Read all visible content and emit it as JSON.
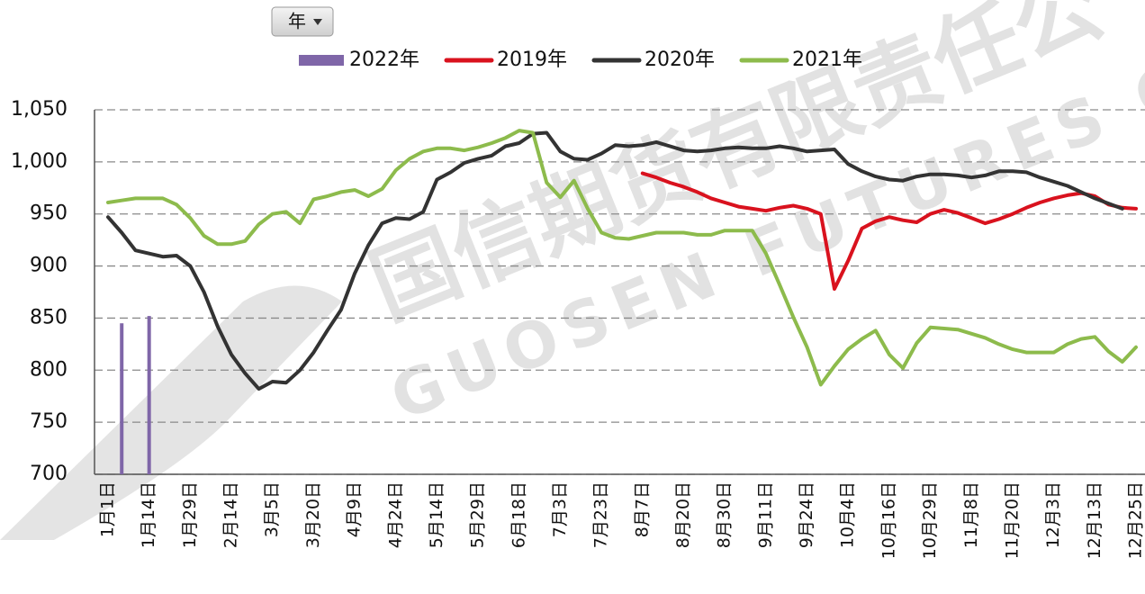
{
  "filter_label": "年",
  "watermark": [
    "国信期货有限责任公",
    "GUOSEN FUTURES CO"
  ],
  "chart_data": {
    "type": "line",
    "categories": [
      "1月1日",
      null,
      null,
      "1月14日",
      null,
      null,
      "1月29日",
      null,
      null,
      "2月14日",
      null,
      null,
      "3月5日",
      null,
      null,
      "3月20日",
      null,
      null,
      "4月9日",
      null,
      null,
      "4月24日",
      null,
      null,
      "5月14日",
      null,
      null,
      "5月29日",
      null,
      null,
      "6月18日",
      null,
      null,
      "7月3日",
      null,
      null,
      "7月23日",
      null,
      null,
      "8月7日",
      null,
      null,
      "8月20日",
      null,
      null,
      "8月30日",
      null,
      null,
      "9月11日",
      null,
      null,
      "9月24日",
      null,
      null,
      "10月4日",
      null,
      null,
      "10月16日",
      null,
      null,
      "10月29日",
      null,
      null,
      "11月8日",
      null,
      null,
      "11月20日",
      null,
      null,
      "12月3日",
      null,
      null,
      "12月13日",
      null,
      null,
      "12月25日"
    ],
    "series": [
      {
        "name": "2022年",
        "mark": "bar",
        "color": "#7f66a8",
        "values": [
          null,
          845,
          null,
          852,
          null,
          null,
          null,
          null,
          null,
          null,
          null,
          null,
          null,
          null,
          null,
          null,
          null,
          null,
          null,
          null,
          null,
          null,
          null,
          null,
          null,
          null,
          null,
          null,
          null,
          null,
          null,
          null,
          null,
          null,
          null,
          null,
          null,
          null,
          null,
          null,
          null,
          null,
          null,
          null,
          null,
          null,
          null,
          null,
          null,
          null,
          null,
          null,
          null,
          null,
          null,
          null,
          null,
          null,
          null,
          null,
          null,
          null,
          null,
          null,
          null,
          null,
          null,
          null,
          null,
          null,
          null,
          null,
          null,
          null,
          null,
          null
        ]
      },
      {
        "name": "2019年",
        "mark": "line",
        "color": "#d9121e",
        "values": [
          null,
          null,
          null,
          null,
          null,
          null,
          null,
          null,
          null,
          null,
          null,
          null,
          null,
          null,
          null,
          null,
          null,
          null,
          null,
          null,
          null,
          null,
          null,
          null,
          null,
          null,
          null,
          null,
          null,
          null,
          null,
          null,
          null,
          null,
          null,
          null,
          null,
          null,
          null,
          989,
          985,
          980,
          976,
          971,
          965,
          961,
          957,
          955,
          953,
          956,
          958,
          955,
          950,
          878,
          905,
          936,
          943,
          947,
          944,
          942,
          950,
          954,
          951,
          946,
          941,
          945,
          950,
          956,
          961,
          965,
          968,
          970,
          967,
          959,
          956,
          955
        ]
      },
      {
        "name": "2020年",
        "mark": "line",
        "color": "#333333",
        "values": [
          947,
          932,
          915,
          912,
          909,
          910,
          900,
          875,
          842,
          815,
          797,
          782,
          789,
          788,
          800,
          817,
          838,
          858,
          893,
          920,
          941,
          946,
          945,
          952,
          983,
          990,
          999,
          1003,
          1006,
          1015,
          1018,
          1027,
          1028,
          1010,
          1003,
          1002,
          1008,
          1016,
          1015,
          1016,
          1019,
          1015,
          1011,
          1010,
          1011,
          1013,
          1014,
          1013,
          1013,
          1015,
          1013,
          1010,
          1011,
          1012,
          998,
          991,
          986,
          983,
          982,
          986,
          988,
          988,
          987,
          985,
          987,
          991,
          991,
          990,
          985,
          981,
          977,
          971,
          965,
          960,
          955,
          null
        ]
      },
      {
        "name": "2021年",
        "mark": "line",
        "color": "#8dbb4c",
        "values": [
          961,
          963,
          965,
          965,
          965,
          959,
          946,
          929,
          921,
          921,
          924,
          940,
          950,
          952,
          941,
          964,
          967,
          971,
          973,
          967,
          974,
          992,
          1003,
          1010,
          1013,
          1013,
          1011,
          1014,
          1018,
          1023,
          1030,
          1028,
          980,
          966,
          982,
          955,
          932,
          927,
          926,
          929,
          932,
          932,
          932,
          930,
          930,
          934,
          934,
          934,
          912,
          882,
          851,
          822,
          786,
          804,
          820,
          830,
          838,
          815,
          802,
          826,
          841,
          840,
          839,
          835,
          831,
          825,
          820,
          817,
          817,
          817,
          825,
          830,
          832,
          818,
          808,
          822
        ]
      }
    ],
    "ylim": [
      700,
      1050
    ],
    "yticks": [
      700,
      750,
      800,
      850,
      900,
      950,
      {
        "value": 1000,
        "label": "1,000"
      },
      {
        "value": 1050,
        "label": "1,050"
      }
    ],
    "grid": true
  }
}
